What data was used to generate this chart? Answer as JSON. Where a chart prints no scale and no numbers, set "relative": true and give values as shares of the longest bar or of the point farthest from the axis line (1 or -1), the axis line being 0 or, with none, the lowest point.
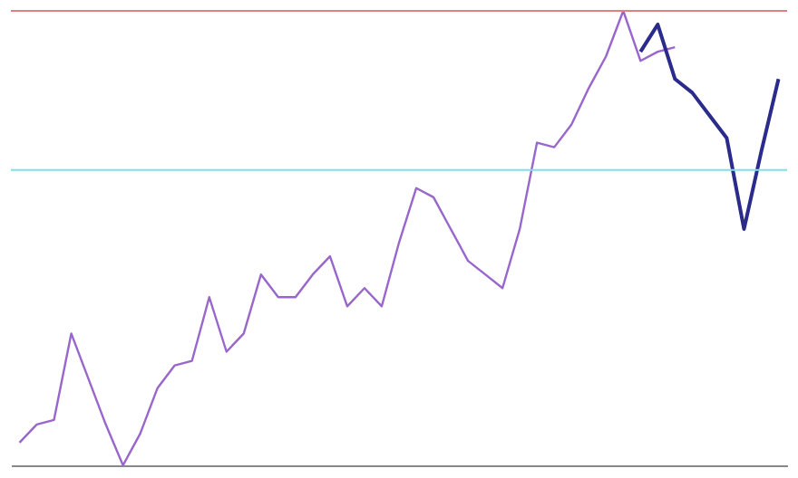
{
  "chart_data": {
    "type": "line",
    "relative": true,
    "categories": [
      null,
      null,
      null,
      null,
      null,
      null,
      null,
      null,
      null,
      null,
      null,
      null,
      null,
      null,
      null,
      null,
      null,
      null,
      null,
      null,
      null,
      null,
      null,
      null,
      null,
      null,
      null,
      null,
      null,
      null,
      null,
      null,
      null,
      null,
      null,
      null,
      null,
      null,
      null,
      null,
      null,
      null,
      null,
      null,
      null
    ],
    "series": [
      {
        "color": "#9966cc",
        "values": [
          0.05,
          0.09,
          0.1,
          0.29,
          0.19,
          0.09,
          0,
          0.07,
          0.17,
          0.22,
          0.23,
          0.37,
          0.25,
          0.29,
          0.42,
          0.37,
          0.37,
          0.42,
          0.46,
          0.35,
          0.39,
          0.35,
          0.49,
          0.61,
          0.59,
          0.52,
          0.45,
          0.42,
          0.39,
          0.52,
          0.71,
          0.7,
          0.75,
          0.83,
          0.9,
          1,
          0.89,
          0.91,
          0.92,
          null,
          null,
          null,
          null,
          null,
          null
        ]
      },
      {
        "color": "#2b2b8c",
        "values": [
          null,
          null,
          null,
          null,
          null,
          null,
          null,
          null,
          null,
          null,
          null,
          null,
          null,
          null,
          null,
          null,
          null,
          null,
          null,
          null,
          null,
          null,
          null,
          null,
          null,
          null,
          null,
          null,
          null,
          null,
          null,
          null,
          null,
          null,
          null,
          null,
          0.91,
          0.97,
          0.85,
          0.82,
          0.77,
          0.72,
          0.52,
          0.69,
          0.85
        ]
      }
    ],
    "ref_lines": [
      {
        "axis": "y",
        "value": 1,
        "color": "#e08080"
      },
      {
        "axis": "y",
        "value": 0.65,
        "color": "#80e0e8"
      }
    ]
  }
}
